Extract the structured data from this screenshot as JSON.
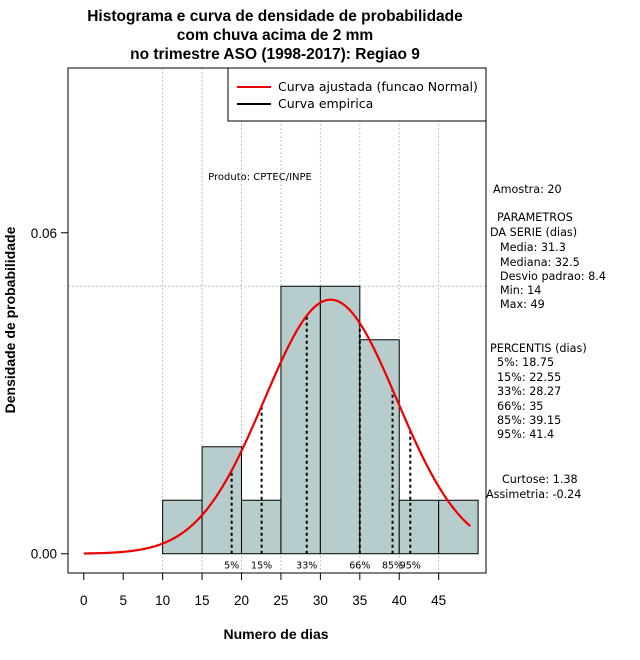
{
  "chart_data": {
    "type": "bar",
    "title_lines": [
      "Histograma e curva de densidade de probabilidade",
      "com chuva acima de 2 mm",
      "no trimestre ASO (1998-2017): Regiao 9"
    ],
    "xlabel": "Numero de dias",
    "ylabel": "Densidade de probabilidade",
    "xlim": [
      -2,
      51
    ],
    "ylim": [
      -0.0036,
      0.0908
    ],
    "x_ticks": [
      0,
      5,
      10,
      15,
      20,
      25,
      30,
      35,
      40,
      45
    ],
    "x_tick_labels": [
      "0",
      "5",
      "10",
      "15",
      "20",
      "25",
      "30",
      "35",
      "40",
      "45"
    ],
    "y_ticks": [
      0.0,
      0.06
    ],
    "y_tick_labels": [
      "0.00",
      "0.06"
    ],
    "grid_x": [
      10,
      15,
      20,
      25,
      30,
      35,
      40,
      45
    ],
    "grid_y": [
      0.05
    ],
    "bins": [
      {
        "from": 10,
        "to": 15,
        "density": 0.01
      },
      {
        "from": 15,
        "to": 20,
        "density": 0.02
      },
      {
        "from": 20,
        "to": 25,
        "density": 0.01
      },
      {
        "from": 25,
        "to": 30,
        "density": 0.05
      },
      {
        "from": 30,
        "to": 35,
        "density": 0.05
      },
      {
        "from": 35,
        "to": 40,
        "density": 0.04
      },
      {
        "from": 40,
        "to": 45,
        "density": 0.01
      },
      {
        "from": 45,
        "to": 50,
        "density": 0.01
      }
    ],
    "bar_color": "#b7cccc",
    "series": [
      {
        "name": "Curva ajustada (funcao Normal)",
        "color": "#ee0000",
        "distribution": "normal",
        "mean": 31.3,
        "sd": 8.4,
        "x_range": [
          0,
          49
        ]
      },
      {
        "name": "Curva empirica",
        "color": "#000000"
      }
    ],
    "legend_position": "top-right",
    "annotation": "Produto: CPTEC/INPE",
    "percentiles": [
      {
        "label": "5%",
        "x": 18.75
      },
      {
        "label": "15%",
        "x": 22.55
      },
      {
        "label": "33%",
        "x": 28.27
      },
      {
        "label": "66%",
        "x": 35
      },
      {
        "label": "85%",
        "x": 39.15
      },
      {
        "label": "95%",
        "x": 41.4
      }
    ],
    "stats_text": [
      "Amostra: 20",
      "PARAMETROS",
      "DA SERIE (dias)",
      "Media: 31.3",
      "Mediana: 32.5",
      "Desvio padrao: 8.4",
      "Min: 14",
      "Max: 49",
      "PERCENTIS (dias)",
      "5%: 18.75",
      "15%: 22.55",
      "33%: 28.27",
      "66%: 35",
      "85%: 39.15",
      "95%: 41.4",
      "Curtose: 1.38",
      "Assimetria: -0.24"
    ]
  }
}
